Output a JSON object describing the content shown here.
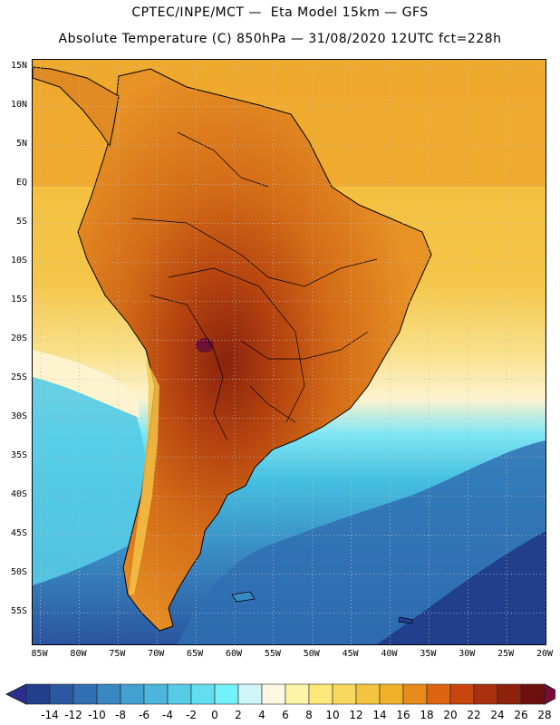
{
  "title": {
    "line1": "CPTEC/INPE/MCT —  Eta Model 15km — GFS",
    "line2": "Absolute Temperature (C) 850hPa — 31/08/2020 12UTC fct=228h"
  },
  "map": {
    "region": "South America",
    "variable": "Absolute Temperature (C) 850hPa",
    "lat_labels": [
      "15N",
      "10N",
      "5N",
      "EQ",
      "5S",
      "10S",
      "15S",
      "20S",
      "25S",
      "30S",
      "35S",
      "40S",
      "45S",
      "50S",
      "55S"
    ],
    "lat_values": [
      15,
      10,
      5,
      0,
      -5,
      -10,
      -15,
      -20,
      -25,
      -30,
      -35,
      -40,
      -45,
      -50,
      -55
    ],
    "lon_labels": [
      "85W",
      "80W",
      "75W",
      "70W",
      "65W",
      "60W",
      "55W",
      "50W",
      "45W",
      "40W",
      "35W",
      "30W",
      "25W",
      "20W"
    ],
    "lon_values": [
      -85,
      -80,
      -75,
      -70,
      -65,
      -60,
      -55,
      -50,
      -45,
      -40,
      -35,
      -30,
      -25,
      -20
    ],
    "extent": {
      "lon_min": -86,
      "lon_max": -20,
      "lat_min": -59,
      "lat_max": 16
    }
  },
  "colorbar": {
    "labels": [
      "-14",
      "-12",
      "-10",
      "-8",
      "-6",
      "-4",
      "-2",
      "0",
      "2",
      "4",
      "6",
      "8",
      "10",
      "12",
      "14",
      "16",
      "18",
      "20",
      "22",
      "24",
      "26",
      "28"
    ],
    "colors": [
      "#223f8e",
      "#2a58a0",
      "#3070b2",
      "#3a88c2",
      "#44a0d0",
      "#4cb6dc",
      "#55cbe6",
      "#62def0",
      "#74f2fa",
      "#d0f6fa",
      "#fdf8e4",
      "#fdf4a8",
      "#fde87a",
      "#f9d860",
      "#f3c440",
      "#f0b02a",
      "#e88a1c",
      "#de6412",
      "#c8460e",
      "#a8300c",
      "#8c220c",
      "#6e1010"
    ],
    "under_color": "#2c2e8e",
    "over_color": "#7a0a36"
  }
}
